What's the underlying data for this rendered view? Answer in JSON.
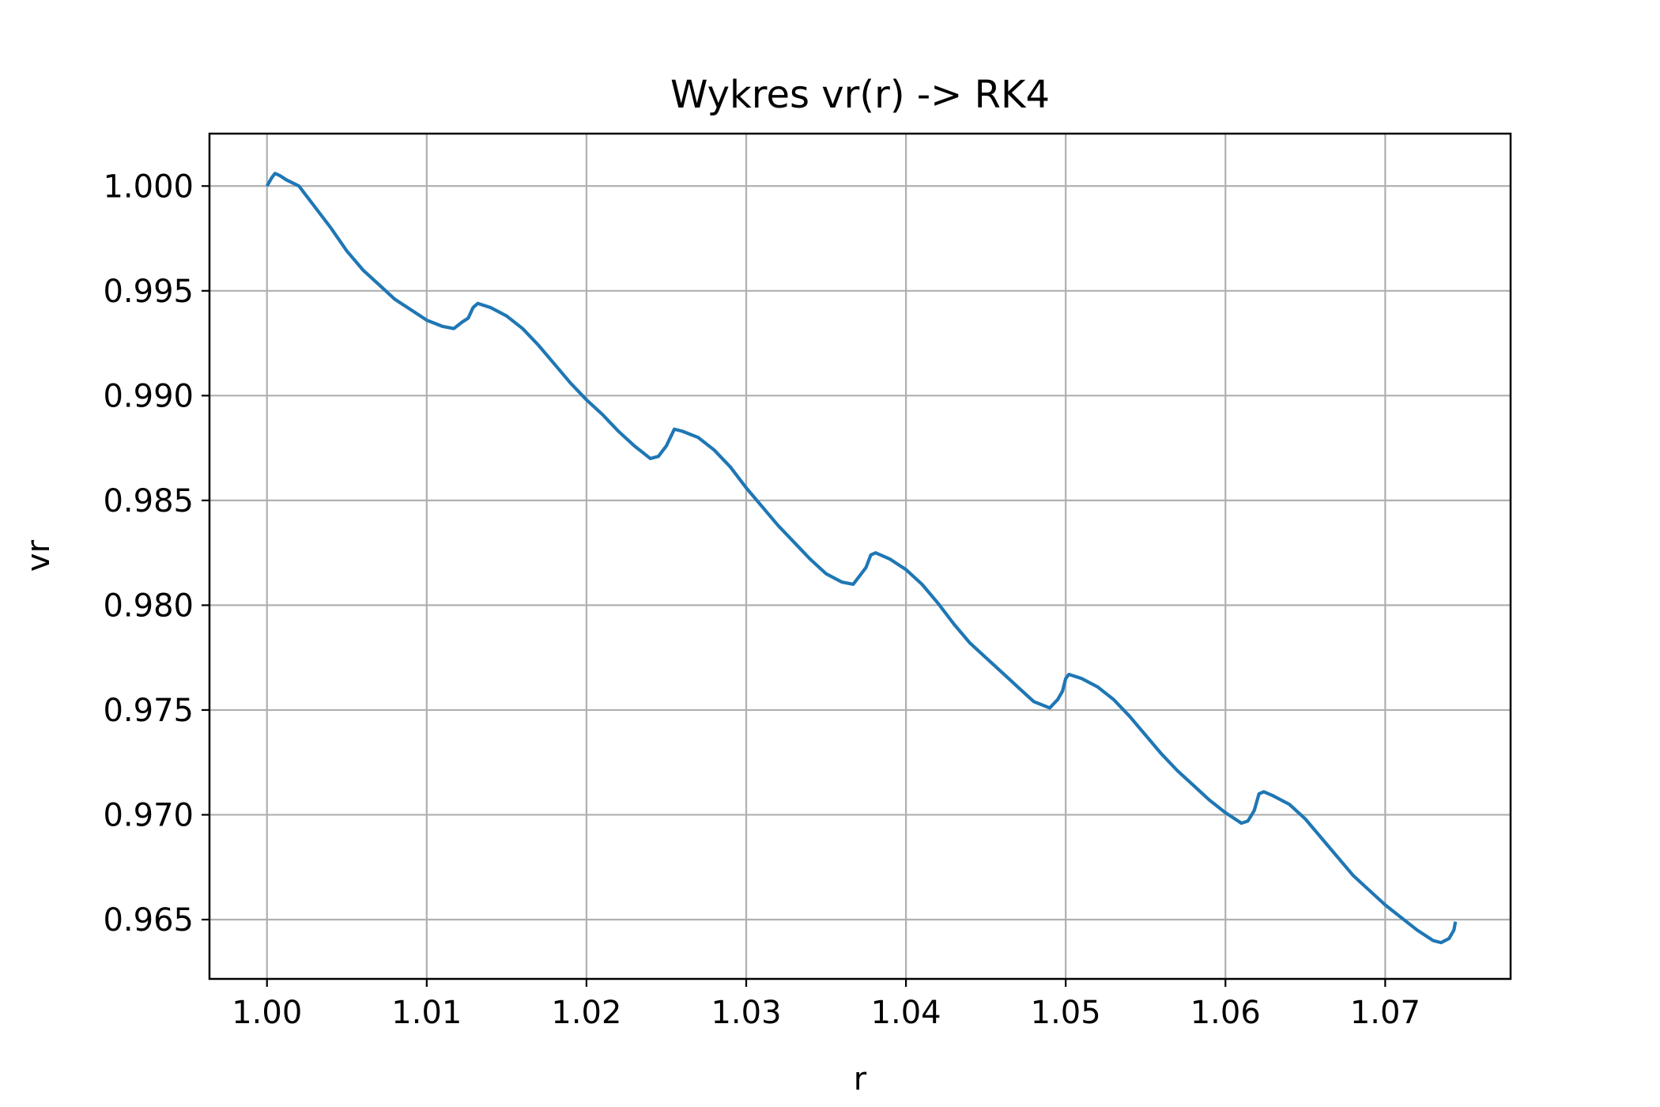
{
  "chart_data": {
    "type": "line",
    "title": "Wykres vr(r) -> RK4",
    "xlabel": "r",
    "ylabel": "vr",
    "xlim": [
      0.9964,
      1.07785
    ],
    "ylim": [
      0.96217,
      1.0025
    ],
    "xticks": [
      1.0,
      1.01,
      1.02,
      1.03,
      1.04,
      1.05,
      1.06,
      1.07
    ],
    "xtick_labels": [
      "1.00",
      "1.01",
      "1.02",
      "1.03",
      "1.04",
      "1.05",
      "1.06",
      "1.07"
    ],
    "yticks": [
      0.965,
      0.97,
      0.975,
      0.98,
      0.985,
      0.99,
      0.995,
      1.0
    ],
    "ytick_labels": [
      "0.965",
      "0.970",
      "0.975",
      "0.980",
      "0.985",
      "0.990",
      "0.995",
      "1.000"
    ],
    "grid": true,
    "legend": false,
    "series": [
      {
        "color": "#1f77b4",
        "points": [
          [
            1.0,
            1.0
          ],
          [
            1.0003,
            1.0004
          ],
          [
            1.0005,
            1.0006
          ],
          [
            1.0008,
            1.0005
          ],
          [
            1.0012,
            1.0003
          ],
          [
            1.002,
            1.0
          ],
          [
            1.003,
            0.999
          ],
          [
            1.004,
            0.998
          ],
          [
            1.005,
            0.9969
          ],
          [
            1.006,
            0.996
          ],
          [
            1.007,
            0.9953
          ],
          [
            1.008,
            0.9946
          ],
          [
            1.009,
            0.9941
          ],
          [
            1.01,
            0.9936
          ],
          [
            1.011,
            0.9933
          ],
          [
            1.0117,
            0.9932
          ],
          [
            1.0122,
            0.9935
          ],
          [
            1.0126,
            0.9937
          ],
          [
            1.0129,
            0.9942
          ],
          [
            1.0132,
            0.9944
          ],
          [
            1.014,
            0.9942
          ],
          [
            1.015,
            0.9938
          ],
          [
            1.016,
            0.9932
          ],
          [
            1.017,
            0.9924
          ],
          [
            1.018,
            0.9915
          ],
          [
            1.019,
            0.9906
          ],
          [
            1.02,
            0.9898
          ],
          [
            1.021,
            0.9891
          ],
          [
            1.022,
            0.9883
          ],
          [
            1.023,
            0.9876
          ],
          [
            1.024,
            0.987
          ],
          [
            1.0245,
            0.9871
          ],
          [
            1.025,
            0.9876
          ],
          [
            1.0255,
            0.9884
          ],
          [
            1.026,
            0.9883
          ],
          [
            1.027,
            0.988
          ],
          [
            1.028,
            0.9874
          ],
          [
            1.029,
            0.9866
          ],
          [
            1.03,
            0.9856
          ],
          [
            1.031,
            0.9847
          ],
          [
            1.032,
            0.9838
          ],
          [
            1.033,
            0.983
          ],
          [
            1.034,
            0.9822
          ],
          [
            1.035,
            0.9815
          ],
          [
            1.036,
            0.9811
          ],
          [
            1.0367,
            0.981
          ],
          [
            1.0372,
            0.9815
          ],
          [
            1.0375,
            0.9818
          ],
          [
            1.0378,
            0.9824
          ],
          [
            1.0381,
            0.9825
          ],
          [
            1.039,
            0.9822
          ],
          [
            1.04,
            0.9817
          ],
          [
            1.041,
            0.981
          ],
          [
            1.042,
            0.9801
          ],
          [
            1.043,
            0.9791
          ],
          [
            1.044,
            0.9782
          ],
          [
            1.045,
            0.9775
          ],
          [
            1.046,
            0.9768
          ],
          [
            1.047,
            0.9761
          ],
          [
            1.048,
            0.9754
          ],
          [
            1.049,
            0.9751
          ],
          [
            1.0495,
            0.9755
          ],
          [
            1.0498,
            0.9759
          ],
          [
            1.05,
            0.9765
          ],
          [
            1.0502,
            0.9767
          ],
          [
            1.051,
            0.9765
          ],
          [
            1.052,
            0.9761
          ],
          [
            1.053,
            0.9755
          ],
          [
            1.054,
            0.9747
          ],
          [
            1.055,
            0.9738
          ],
          [
            1.056,
            0.9729
          ],
          [
            1.057,
            0.9721
          ],
          [
            1.058,
            0.9714
          ],
          [
            1.059,
            0.9707
          ],
          [
            1.06,
            0.9701
          ],
          [
            1.061,
            0.9696
          ],
          [
            1.0614,
            0.9697
          ],
          [
            1.0618,
            0.9702
          ],
          [
            1.0621,
            0.971
          ],
          [
            1.0624,
            0.9711
          ],
          [
            1.063,
            0.9709
          ],
          [
            1.064,
            0.9705
          ],
          [
            1.065,
            0.9698
          ],
          [
            1.066,
            0.9689
          ],
          [
            1.067,
            0.968
          ],
          [
            1.068,
            0.9671
          ],
          [
            1.069,
            0.9664
          ],
          [
            1.07,
            0.9657
          ],
          [
            1.071,
            0.9651
          ],
          [
            1.072,
            0.9645
          ],
          [
            1.073,
            0.964
          ],
          [
            1.0735,
            0.9639
          ],
          [
            1.074,
            0.9641
          ],
          [
            1.0743,
            0.9645
          ],
          [
            1.0744,
            0.9649
          ]
        ]
      }
    ]
  }
}
